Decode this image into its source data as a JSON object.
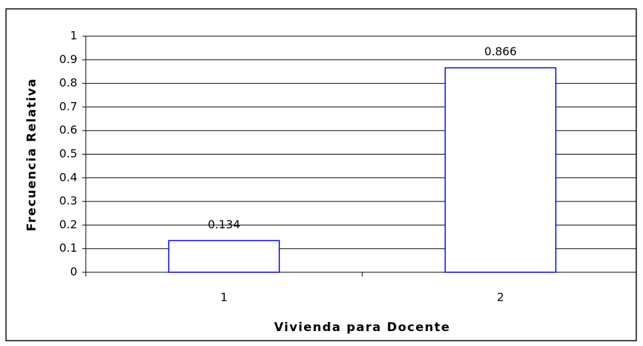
{
  "chart_data": {
    "type": "bar",
    "x_label": "Vivienda para Docente",
    "y_label": "Frecuencia Relativa",
    "categories": [
      "1",
      "2"
    ],
    "values": [
      0.134,
      0.866
    ],
    "color": "#0000ff",
    "ylim": [
      0,
      1
    ],
    "yticks": [
      0,
      0.1,
      0.2,
      0.3,
      0.4,
      0.5,
      0.6,
      0.7,
      0.8,
      0.9,
      1
    ],
    "grid": true
  }
}
